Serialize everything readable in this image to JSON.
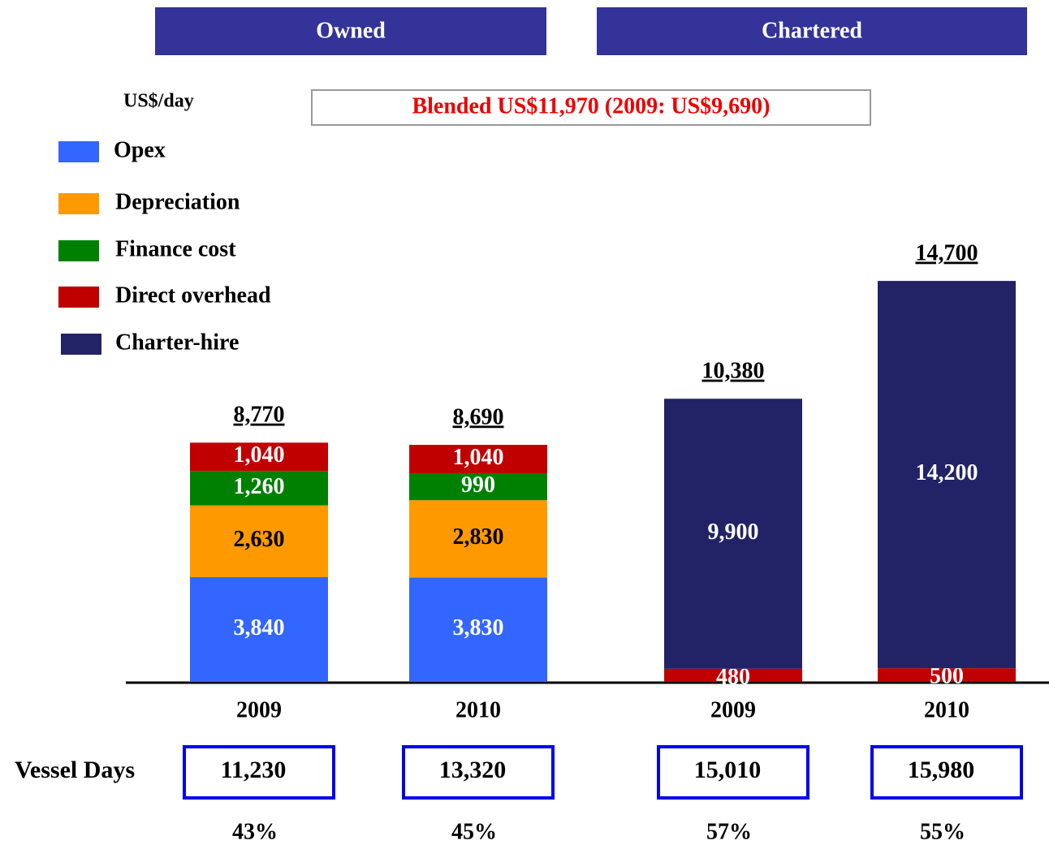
{
  "chart_data": {
    "type": "bar",
    "stacked": true,
    "groups": [
      "Owned",
      "Chartered"
    ],
    "unit_label": "US$/day",
    "annotation": "Blended US$11,970 (2009: US$9,690)",
    "categories": [
      "2009",
      "2010",
      "2009",
      "2010"
    ],
    "series": [
      {
        "name": "Opex",
        "color": "#3366ff",
        "label_color": "#ffffff",
        "values": [
          3840,
          3830,
          null,
          null
        ],
        "value_labels": [
          "3,840",
          "3,830",
          null,
          null
        ]
      },
      {
        "name": "Depreciation",
        "color": "#ff9900",
        "label_color": "#000000",
        "values": [
          2630,
          2830,
          null,
          null
        ],
        "value_labels": [
          "2,630",
          "2,830",
          null,
          null
        ]
      },
      {
        "name": "Finance cost",
        "color": "#008000",
        "label_color": "#ffffff",
        "values": [
          1260,
          990,
          null,
          null
        ],
        "value_labels": [
          "1,260",
          "990",
          null,
          null
        ]
      },
      {
        "name": "Direct overhead",
        "color": "#c00000",
        "label_color": "#ffffff",
        "values": [
          1040,
          1040,
          480,
          500
        ],
        "value_labels": [
          "1,040",
          "1,040",
          "480",
          "500"
        ]
      },
      {
        "name": "Charter-hire",
        "color": "#222266",
        "label_color": "#ffffff",
        "values": [
          null,
          null,
          9900,
          14200
        ],
        "value_labels": [
          null,
          null,
          "9,900",
          "14,200"
        ]
      }
    ],
    "totals": [
      8770,
      8690,
      10380,
      14700
    ],
    "total_labels": [
      "8,770",
      "8,690",
      "10,380",
      "14,700"
    ],
    "vessel_days_label": "Vessel Days",
    "vessel_days": [
      "11,230",
      "13,320",
      "15,010",
      "15,980"
    ],
    "shares": [
      "43%",
      "45%",
      "57%",
      "55%"
    ]
  }
}
